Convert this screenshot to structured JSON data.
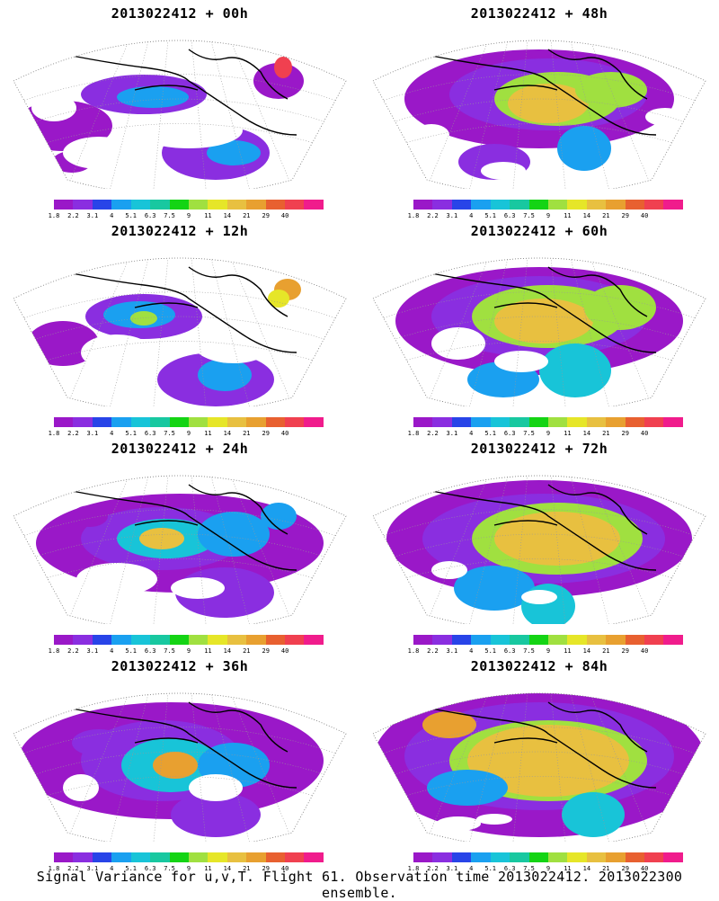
{
  "colorbar": {
    "colors": [
      "#9a18c8",
      "#8a2ee0",
      "#2844e8",
      "#1aa0f0",
      "#18c4d8",
      "#18c8a0",
      "#14d414",
      "#a0e040",
      "#e6e628",
      "#e8c040",
      "#e8a030",
      "#e86030",
      "#f04050",
      "#f01c8c"
    ],
    "labels": [
      "1.8",
      "2.2",
      "3.1",
      "4",
      "5.1",
      "6.3",
      "7.5",
      "9",
      "11",
      "14",
      "21",
      "29",
      "40"
    ]
  },
  "panels": [
    {
      "title": "2013022412 + 00h",
      "level": 0
    },
    {
      "title": "2013022412 + 48h",
      "level": 4
    },
    {
      "title": "2013022412 + 12h",
      "level": 1
    },
    {
      "title": "2013022412 + 60h",
      "level": 5
    },
    {
      "title": "2013022412 + 24h",
      "level": 2
    },
    {
      "title": "2013022412 + 72h",
      "level": 6
    },
    {
      "title": "2013022412 + 36h",
      "level": 3
    },
    {
      "title": "2013022412 + 84h",
      "level": 7
    }
  ],
  "caption": "Signal Variance for u,v,T. Flight 61. Observation time 2013022412. 2013022300 ensemble."
}
